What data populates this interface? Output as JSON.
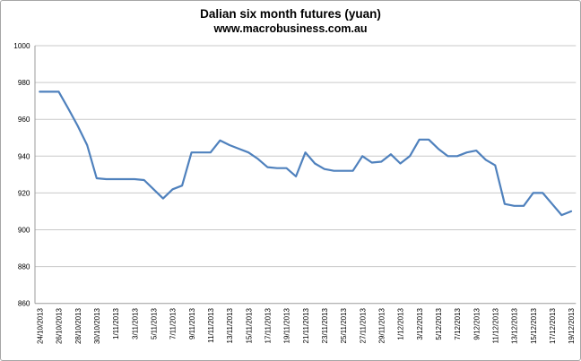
{
  "chart_data": {
    "type": "line",
    "title": "Dalian six month futures (yuan)",
    "subtitle": "www.macrobusiness.com.au",
    "ylim": [
      860,
      1000
    ],
    "ytick_step": 20,
    "y_ticks": [
      860,
      880,
      900,
      920,
      940,
      960,
      980,
      1000
    ],
    "x_labels": [
      "24/10/2013",
      "26/10/2013",
      "28/10/2013",
      "30/10/2013",
      "1/11/2013",
      "3/11/2013",
      "5/11/2013",
      "7/11/2013",
      "9/11/2013",
      "11/11/2013",
      "13/11/2013",
      "15/11/2013",
      "17/11/2013",
      "19/11/2013",
      "21/11/2013",
      "23/11/2013",
      "25/11/2013",
      "27/11/2013",
      "29/11/2013",
      "1/12/2013",
      "3/12/2013",
      "5/12/2013",
      "7/12/2013",
      "9/12/2013",
      "11/12/2013",
      "13/12/2013",
      "15/12/2013",
      "17/12/2013",
      "19/12/2013"
    ],
    "label_every": 2,
    "values": [
      975,
      975,
      975,
      966,
      956.5,
      946,
      928,
      927.5,
      927.5,
      927.5,
      927.5,
      927,
      922,
      917,
      922,
      924,
      942,
      942,
      942,
      948.5,
      946,
      944,
      942,
      938.5,
      934,
      933.5,
      933.5,
      929,
      942,
      936,
      933,
      932,
      932,
      932,
      940,
      936.5,
      937,
      941,
      936,
      940,
      949,
      949,
      944,
      940,
      940,
      942,
      943,
      938,
      935,
      914,
      913,
      913,
      920,
      920,
      914,
      908,
      910
    ],
    "line_color": "#4F81BD",
    "gridline_color": "#C9C9C9",
    "axis_color": "#9B9B9B",
    "text_color": "#000000",
    "legend": "none",
    "grid": "horizontal"
  }
}
